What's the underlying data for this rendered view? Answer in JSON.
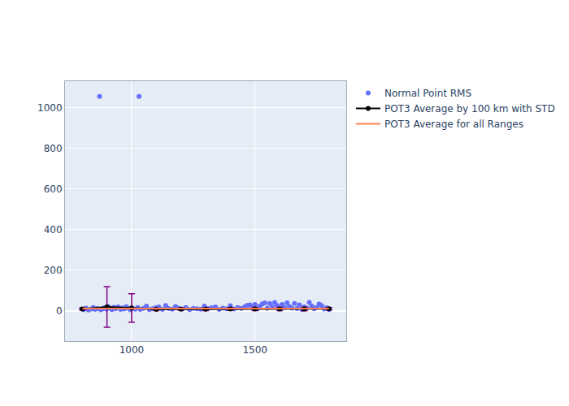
{
  "chart_data": {
    "type": "scatter",
    "grid": true,
    "legend": "top right",
    "xlim": [
      730,
      1870
    ],
    "ylim": [
      -150,
      1130
    ],
    "xticks": [
      1000,
      1500
    ],
    "yticks": [
      0,
      200,
      400,
      600,
      800,
      1000
    ],
    "series": [
      {
        "name": "Normal Point RMS",
        "type": "scatter",
        "marker": "circle",
        "color": "#636efa",
        "x": [
          805,
          815,
          825,
          838,
          845,
          852,
          860,
          870,
          875,
          883,
          890,
          898,
          905,
          912,
          920,
          928,
          935,
          945,
          955,
          962,
          970,
          978,
          985,
          995,
          1005,
          1015,
          1025,
          1030,
          1035,
          1048,
          1060,
          1072,
          1085,
          1098,
          1110,
          1125,
          1138,
          1150,
          1165,
          1178,
          1190,
          1205,
          1220,
          1235,
          1250,
          1265,
          1280,
          1295,
          1310,
          1325,
          1340,
          1355,
          1370,
          1385,
          1400,
          1415,
          1430,
          1445,
          1460,
          1470,
          1480,
          1490,
          1500,
          1510,
          1520,
          1530,
          1540,
          1550,
          1560,
          1570,
          1580,
          1590,
          1600,
          1610,
          1620,
          1630,
          1640,
          1650,
          1660,
          1670,
          1680,
          1690,
          1700,
          1710,
          1720,
          1730,
          1740,
          1750,
          1760,
          1770,
          1780,
          1790,
          1800
        ],
        "values": [
          5,
          12,
          3,
          8,
          15,
          6,
          10,
          1055,
          4,
          9,
          14,
          7,
          20,
          11,
          5,
          16,
          9,
          18,
          6,
          13,
          8,
          19,
          12,
          4,
          10,
          7,
          15,
          1055,
          6,
          11,
          22,
          5,
          9,
          14,
          18,
          6,
          25,
          10,
          7,
          20,
          12,
          8,
          15,
          5,
          11,
          9,
          7,
          22,
          10,
          14,
          18,
          6,
          12,
          9,
          24,
          8,
          15,
          11,
          20,
          26,
          28,
          14,
          30,
          9,
          22,
          33,
          38,
          12,
          35,
          18,
          40,
          25,
          8,
          30,
          15,
          38,
          20,
          12,
          35,
          10,
          28,
          6,
          18,
          12,
          40,
          22,
          9,
          15,
          32,
          25,
          8,
          14,
          5
        ]
      },
      {
        "name": "POT3 Average by 100 km with STD",
        "type": "line",
        "marker": "circle",
        "color": "#000000",
        "x": [
          800,
          900,
          1000,
          1100,
          1200,
          1300,
          1400,
          1500,
          1600,
          1700,
          1800
        ],
        "values": [
          8,
          18,
          13,
          6,
          7,
          7,
          8,
          8,
          8,
          8,
          9
        ],
        "errors": [
          5,
          100,
          70,
          6,
          6,
          7,
          7,
          8,
          8,
          9,
          6
        ]
      },
      {
        "name": "POT3 Average for all Ranges",
        "type": "line",
        "marker": "none",
        "color": "#ff7f50",
        "x": [
          800,
          1800
        ],
        "values": [
          10,
          10
        ]
      }
    ]
  }
}
